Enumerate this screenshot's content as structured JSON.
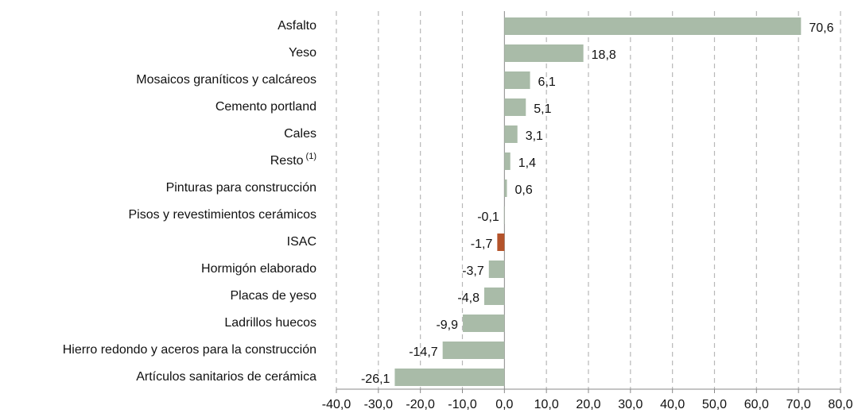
{
  "chart_data": {
    "type": "bar",
    "orientation": "horizontal",
    "categories": [
      "Asfalto",
      "Yeso",
      "Mosaicos graníticos y calcáreos",
      "Cemento portland",
      "Cales",
      "Resto",
      "Pinturas para construcción",
      "Pisos y revestimientos cerámicos",
      "ISAC",
      "Hormigón elaborado",
      "Placas de yeso",
      "Ladrillos huecos",
      "Hierro redondo y aceros para la construcción",
      "Artículos sanitarios de cerámica"
    ],
    "category_superscripts": [
      null,
      null,
      null,
      null,
      null,
      "(1)",
      null,
      null,
      null,
      null,
      null,
      null,
      null,
      null
    ],
    "values": [
      70.6,
      18.8,
      6.1,
      5.1,
      3.1,
      1.4,
      0.6,
      -0.1,
      -1.7,
      -3.7,
      -4.8,
      -9.9,
      -14.7,
      -26.1
    ],
    "value_labels": [
      "70,6",
      "18,8",
      "6,1",
      "5,1",
      "3,1",
      "1,4",
      "0,6",
      "-0,1",
      "-1,7",
      "-3,7",
      "-4,8",
      "-9,9",
      "-14,7",
      "-26,1"
    ],
    "colors": [
      "#a9bba8",
      "#a9bba8",
      "#a9bba8",
      "#a9bba8",
      "#a9bba8",
      "#a9bba8",
      "#a9bba8",
      "#a9bba8",
      "#b4532a",
      "#a9bba8",
      "#a9bba8",
      "#a9bba8",
      "#a9bba8",
      "#a9bba8"
    ],
    "xlim": [
      -40,
      80
    ],
    "xticks": [
      {
        "value": -40,
        "label": "-40,0"
      },
      {
        "value": -30,
        "label": "-30,0"
      },
      {
        "value": -20,
        "label": "-20,0"
      },
      {
        "value": -10,
        "label": "-10,0"
      },
      {
        "value": 0,
        "label": "0,0"
      },
      {
        "value": 10,
        "label": "10,0"
      },
      {
        "value": 20,
        "label": "20,0"
      },
      {
        "value": 30,
        "label": "30,0"
      },
      {
        "value": 40,
        "label": "40,0"
      },
      {
        "value": 50,
        "label": "50,0"
      },
      {
        "value": 60,
        "label": "60,0"
      },
      {
        "value": 70,
        "label": "70,0"
      },
      {
        "value": 80,
        "label": "80,0"
      }
    ],
    "grid": true
  }
}
